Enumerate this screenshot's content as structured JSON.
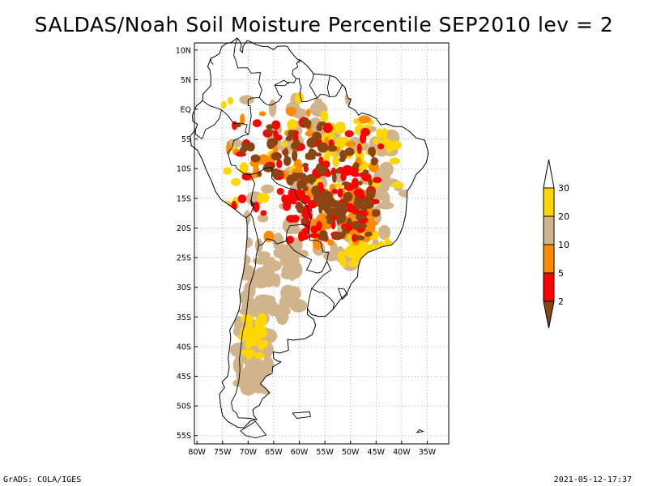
{
  "title": "SALDAS/Noah Soil Moisture Percentile SEP2010 lev = 2",
  "footer": {
    "left": "GrADS: COLA/IGES",
    "right": "2021-05-12-17:37"
  },
  "map": {
    "lat_range": [
      -55,
      10
    ],
    "lon_range": [
      -80,
      -35
    ],
    "lat_ticks": [
      "10N",
      "5N",
      "EQ",
      "5S",
      "10S",
      "15S",
      "20S",
      "25S",
      "30S",
      "35S",
      "40S",
      "45S",
      "50S",
      "55S"
    ],
    "lon_ticks": [
      "80W",
      "75W",
      "70W",
      "65W",
      "60W",
      "55W",
      "50W",
      "45W",
      "40W",
      "35W"
    ],
    "grid": "dotted"
  },
  "colorbar": {
    "labels": [
      "2",
      "5",
      "10",
      "20",
      "30"
    ],
    "colors": [
      "#8b4513",
      "#ff0000",
      "#ff8c00",
      "#d2b48c",
      "#ffd700",
      "#ffffff"
    ]
  }
}
